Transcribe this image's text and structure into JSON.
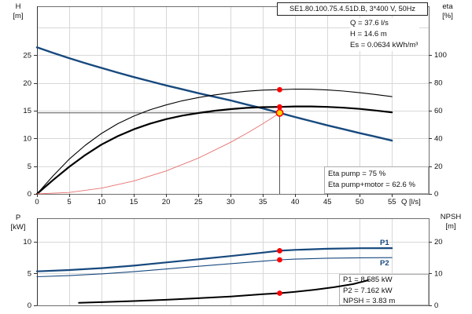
{
  "header": {
    "title": "SE1.80.100.75.4.51D.B, 3*400 V, 50Hz",
    "duty_lines": [
      "Q = 37.6 l/s",
      "H = 14.6 m",
      "Es = 0.0634 kWh/m³"
    ]
  },
  "axes": {
    "h_title": [
      "H",
      "[m]"
    ],
    "eta_title": [
      "eta",
      "[%]"
    ],
    "q_title": "Q [l/s]",
    "p_title": [
      "P",
      "[kW]"
    ],
    "npsh_title": [
      "NPSH",
      "[m]"
    ]
  },
  "annotations": {
    "eta_box": [
      "Eta pump = 75 %",
      "Eta pump+motor = 62.6 %"
    ],
    "power_box": [
      "P1 = 8.585 kW",
      "P2 = 7.162 kW",
      "NPSH = 3.83 m"
    ],
    "p1_label": "P1",
    "p2_label": "P2"
  },
  "colors": {
    "curve_blue": "#17497E",
    "curve_black": "#000000",
    "system_red": "#E87070",
    "marker_red": "#FF0000",
    "duty_yellow": "#FFD200",
    "grid": "#D8D8D8",
    "border": "#6E6E6E",
    "crosshair": "#555555",
    "box_border": "#ADADAD",
    "text": "#111111"
  },
  "chart_data": [
    {
      "type": "line",
      "title": "SE1.80.100.75.4.51D.B, 3*400 V, 50Hz",
      "xlabel": "Q [l/s]",
      "ylabel_left": "H [m]",
      "ylabel_right": "eta [%]",
      "xlim": [
        0,
        60.7
      ],
      "ylim_left": [
        0,
        33.8
      ],
      "ylim_right": [
        0,
        135
      ],
      "x_ticks": [
        0,
        5,
        10,
        15,
        20,
        25,
        30,
        35,
        40,
        45,
        50,
        55
      ],
      "y_left_ticks": [
        0,
        5,
        10,
        15,
        20,
        25
      ],
      "y_right_ticks": [
        0,
        20,
        40,
        60,
        80,
        100
      ],
      "grid_x": [
        5,
        10,
        15,
        20,
        25,
        30,
        35,
        40,
        45,
        50,
        55
      ],
      "grid_y_left": [
        5,
        10,
        15,
        20,
        25,
        30
      ],
      "grid": true,
      "legend_position": "none",
      "series": [
        {
          "name": "pump-curve-hq",
          "label": "H/Q pump curve",
          "axis": "left",
          "color": "#17497E",
          "width": 2.4,
          "points": [
            [
              0,
              26.4
            ],
            [
              2.5,
              25.4
            ],
            [
              5,
              24.45
            ],
            [
              7.5,
              23.55
            ],
            [
              10,
              22.7
            ],
            [
              12.5,
              21.85
            ],
            [
              15,
              21.05
            ],
            [
              17.5,
              20.3
            ],
            [
              20,
              19.55
            ],
            [
              22.5,
              18.85
            ],
            [
              25,
              18.15
            ],
            [
              27.5,
              17.5
            ],
            [
              30,
              16.85
            ],
            [
              32.5,
              16.1
            ],
            [
              35,
              15.4
            ],
            [
              37.6,
              14.6
            ],
            [
              40,
              13.85
            ],
            [
              42.5,
              13.1
            ],
            [
              45,
              12.35
            ],
            [
              47.5,
              11.65
            ],
            [
              50,
              10.95
            ],
            [
              52.5,
              10.3
            ],
            [
              55,
              9.6
            ]
          ]
        },
        {
          "name": "eta-pump-curve",
          "label": "Eta pump",
          "axis": "right",
          "color": "#000000",
          "width": 1.1,
          "points": [
            [
              0,
              0
            ],
            [
              2.5,
              13
            ],
            [
              5,
              25
            ],
            [
              7.5,
              35
            ],
            [
              10,
              43.5
            ],
            [
              12.5,
              50.5
            ],
            [
              15,
              56
            ],
            [
              17.5,
              60.5
            ],
            [
              20,
              64
            ],
            [
              22.5,
              67
            ],
            [
              25,
              69.3
            ],
            [
              27.5,
              71.2
            ],
            [
              30,
              72.7
            ],
            [
              32.5,
              73.9
            ],
            [
              35,
              74.7
            ],
            [
              37.6,
              75
            ],
            [
              40,
              75.4
            ],
            [
              42.5,
              75.3
            ],
            [
              45,
              74.8
            ],
            [
              47.5,
              74
            ],
            [
              50,
              72.8
            ],
            [
              52.5,
              71.5
            ],
            [
              55,
              70
            ]
          ]
        },
        {
          "name": "eta-pump-motor-curve",
          "label": "Eta pump+motor",
          "axis": "right",
          "color": "#000000",
          "width": 2.2,
          "points": [
            [
              0,
              0
            ],
            [
              2.5,
              10
            ],
            [
              5,
              19.5
            ],
            [
              7.5,
              28
            ],
            [
              10,
              35.5
            ],
            [
              12.5,
              41.5
            ],
            [
              15,
              46.5
            ],
            [
              17.5,
              50.5
            ],
            [
              20,
              53.8
            ],
            [
              22.5,
              56.3
            ],
            [
              25,
              58.2
            ],
            [
              27.5,
              59.8
            ],
            [
              30,
              61
            ],
            [
              32.5,
              61.9
            ],
            [
              35,
              62.4
            ],
            [
              37.6,
              62.6
            ],
            [
              40,
              62.9
            ],
            [
              42.5,
              62.9
            ],
            [
              45,
              62.6
            ],
            [
              47.5,
              62
            ],
            [
              50,
              61.2
            ],
            [
              52.5,
              60
            ],
            [
              55,
              58.7
            ]
          ]
        },
        {
          "name": "system-curve",
          "label": "System curve",
          "axis": "left",
          "color": "#E87070",
          "width": 0.9,
          "points": [
            [
              0,
              0
            ],
            [
              5,
              0.26
            ],
            [
              10,
              1.03
            ],
            [
              15,
              2.32
            ],
            [
              20,
              4.13
            ],
            [
              25,
              6.45
            ],
            [
              30,
              9.29
            ],
            [
              33,
              11.24
            ],
            [
              35,
              12.65
            ],
            [
              36.5,
              13.76
            ],
            [
              37.6,
              14.6
            ]
          ]
        }
      ],
      "markers": [
        {
          "x": 37.6,
          "y": 75,
          "axis": "right",
          "style": "dot"
        },
        {
          "x": 37.6,
          "y": 62.6,
          "axis": "right",
          "style": "dot"
        },
        {
          "x": 37.6,
          "y": 14.6,
          "axis": "left",
          "style": "duty"
        }
      ],
      "crosshair": {
        "x": 37.6,
        "y": 14.6,
        "axis": "left"
      }
    },
    {
      "type": "line",
      "title": "",
      "xlabel": "",
      "ylabel_left": "P [kW]",
      "ylabel_right": "NPSH [m]",
      "xlim": [
        0,
        60.7
      ],
      "ylim_left": [
        0,
        13.7
      ],
      "ylim_right": [
        0,
        27.4
      ],
      "x_ticks": [],
      "y_left_ticks": [
        0,
        5,
        10
      ],
      "y_right_ticks": [
        0,
        10,
        20
      ],
      "grid_x": [
        5,
        10,
        15,
        20,
        25,
        30,
        35,
        40,
        45,
        50,
        55
      ],
      "grid_y_left": [
        5,
        10
      ],
      "grid": true,
      "legend_position": "none",
      "series": [
        {
          "name": "p1-curve",
          "label": "P1",
          "axis": "left",
          "color": "#17497E",
          "width": 2.2,
          "points": [
            [
              0,
              5.35
            ],
            [
              5,
              5.55
            ],
            [
              10,
              5.85
            ],
            [
              15,
              6.25
            ],
            [
              20,
              6.75
            ],
            [
              25,
              7.25
            ],
            [
              30,
              7.75
            ],
            [
              35,
              8.3
            ],
            [
              37.6,
              8.585
            ],
            [
              40,
              8.72
            ],
            [
              45,
              8.9
            ],
            [
              50,
              8.98
            ],
            [
              55,
              9.0
            ]
          ]
        },
        {
          "name": "p2-curve",
          "label": "P2",
          "axis": "left",
          "color": "#17497E",
          "width": 1.1,
          "points": [
            [
              0,
              4.5
            ],
            [
              5,
              4.68
            ],
            [
              10,
              4.95
            ],
            [
              15,
              5.3
            ],
            [
              20,
              5.72
            ],
            [
              25,
              6.15
            ],
            [
              30,
              6.55
            ],
            [
              35,
              6.95
            ],
            [
              37.6,
              7.162
            ],
            [
              40,
              7.27
            ],
            [
              45,
              7.42
            ],
            [
              50,
              7.48
            ],
            [
              55,
              7.5
            ]
          ]
        },
        {
          "name": "npsh-curve",
          "label": "NPSH",
          "axis": "right",
          "color": "#000000",
          "width": 2.0,
          "points": [
            [
              6.5,
              0.8
            ],
            [
              10,
              1.0
            ],
            [
              15,
              1.35
            ],
            [
              20,
              1.75
            ],
            [
              25,
              2.25
            ],
            [
              30,
              2.8
            ],
            [
              35,
              3.5
            ],
            [
              37.6,
              3.83
            ],
            [
              40,
              4.25
            ],
            [
              43,
              4.9
            ],
            [
              46,
              5.7
            ],
            [
              49,
              6.7
            ],
            [
              51.3,
              7.9
            ]
          ]
        }
      ],
      "markers": [
        {
          "x": 37.6,
          "y": 8.585,
          "axis": "left",
          "style": "dot"
        },
        {
          "x": 37.6,
          "y": 7.162,
          "axis": "left",
          "style": "dot"
        },
        {
          "x": 37.6,
          "y": 3.83,
          "axis": "right",
          "style": "dot"
        }
      ]
    }
  ]
}
